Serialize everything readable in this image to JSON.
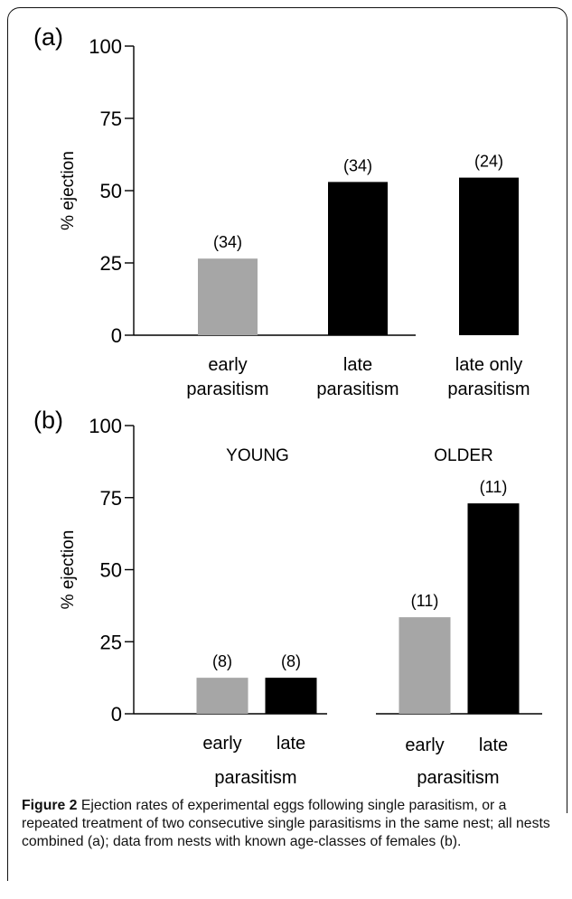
{
  "figure": {
    "caption_label": "Figure 2",
    "caption_text": " Ejection rates of experimental eggs following single parasitism, or a repeated treatment of two consecutive single parasitisms in the same nest; all nests combined (a); data from nests with known age-classes of females (b)."
  },
  "chart_data": [
    {
      "panel": "(a)",
      "type": "bar",
      "ylabel": "% ejection",
      "ylim": [
        0,
        100
      ],
      "yticks": [
        0,
        25,
        50,
        75,
        100
      ],
      "categories": [
        [
          "early",
          "parasitism"
        ],
        [
          "late",
          "parasitism"
        ],
        [
          "late only",
          "parasitism"
        ]
      ],
      "values": [
        26.5,
        53,
        54.5
      ],
      "sample_sizes": [
        "(34)",
        "(34)",
        "(24)"
      ],
      "colors": [
        "#a6a6a6",
        "#000000",
        "#000000"
      ]
    },
    {
      "panel": "(b)",
      "type": "bar",
      "ylabel": "% ejection",
      "ylim": [
        0,
        100
      ],
      "yticks": [
        0,
        25,
        50,
        75,
        100
      ],
      "groups": [
        {
          "label": "YOUNG",
          "xlabel": "parasitism",
          "bars": [
            {
              "category": "early",
              "value": 12.5,
              "n": "(8)",
              "color": "#a6a6a6"
            },
            {
              "category": "late",
              "value": 12.5,
              "n": "(8)",
              "color": "#000000"
            }
          ]
        },
        {
          "label": "OLDER",
          "xlabel": "parasitism",
          "bars": [
            {
              "category": "early",
              "value": 33.5,
              "n": "(11)",
              "color": "#a6a6a6"
            },
            {
              "category": "late",
              "value": 73,
              "n": "(11)",
              "color": "#000000"
            }
          ]
        }
      ]
    }
  ]
}
